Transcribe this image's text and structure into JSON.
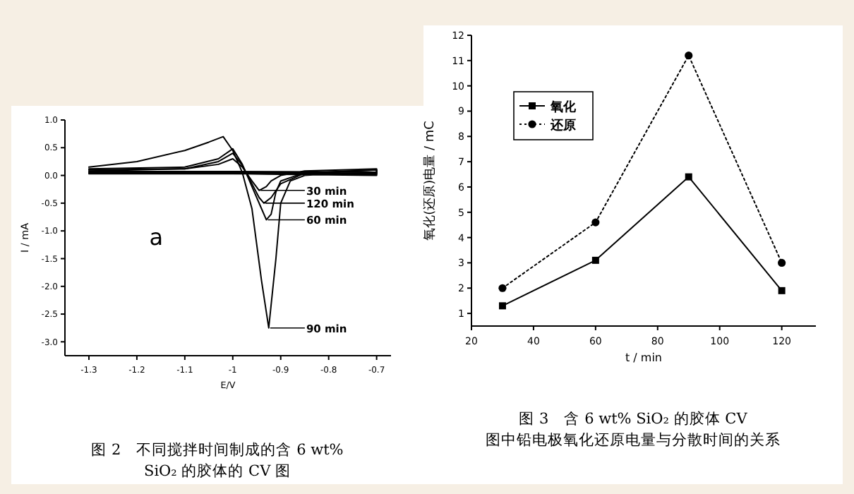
{
  "chart_data": [
    {
      "type": "line",
      "title": "图 2　不同搅拌时间制成的含 6 wt% SiO₂ 的胶体的 CV 图",
      "xlabel": "E/V",
      "ylabel": "I / mA",
      "xlim": [
        -1.35,
        -0.67
      ],
      "ylim": [
        -3.25,
        1.0
      ],
      "xticks": [
        -1.3,
        -1.2,
        -1.1,
        -1.0,
        -0.9,
        -0.8,
        -0.7
      ],
      "yticks": [
        {
          "value": 1,
          "label": "1.0"
        },
        0.5,
        {
          "value": 0,
          "label": "0.0"
        },
        -0.5,
        {
          "value": -1,
          "label": "-1.0"
        },
        -1.5,
        {
          "value": -2,
          "label": "-2.0"
        },
        -2.5,
        {
          "value": -3,
          "label": "-3.0"
        }
      ],
      "annotations": [
        "a"
      ],
      "legend": "right",
      "series": [
        {
          "name": "30 min",
          "color": "#000000",
          "x": [
            -1.3,
            -1.1,
            -1.03,
            -1.0,
            -0.98,
            -0.96,
            -0.945,
            -0.93,
            -0.92,
            -0.9,
            -0.85,
            -0.7,
            -0.7,
            -1.0,
            -1.3
          ],
          "values": [
            0.1,
            0.12,
            0.2,
            0.3,
            0.15,
            -0.1,
            -0.27,
            -0.2,
            -0.1,
            0.0,
            0.08,
            0.12,
            0.06,
            0.07,
            0.07
          ]
        },
        {
          "name": "120 min",
          "color": "#000000",
          "x": [
            -1.3,
            -1.1,
            -1.03,
            -1.0,
            -0.98,
            -0.96,
            -0.945,
            -0.935,
            -0.92,
            -0.9,
            -0.85,
            -0.7,
            -0.7,
            -1.0,
            -1.3
          ],
          "values": [
            0.08,
            0.12,
            0.25,
            0.4,
            0.18,
            -0.15,
            -0.4,
            -0.5,
            -0.4,
            -0.15,
            0.04,
            0.1,
            0.04,
            0.05,
            0.05
          ]
        },
        {
          "name": "60 min",
          "color": "#000000",
          "x": [
            -1.3,
            -1.1,
            -1.03,
            -1.0,
            -0.98,
            -0.96,
            -0.94,
            -0.93,
            -0.92,
            -0.91,
            -0.9,
            -0.85,
            -0.7,
            -0.7,
            -1.0,
            -1.3
          ],
          "values": [
            0.12,
            0.15,
            0.3,
            0.48,
            0.2,
            -0.2,
            -0.6,
            -0.8,
            -0.7,
            -0.3,
            -0.1,
            0.05,
            0.1,
            0.02,
            0.03,
            0.03
          ]
        },
        {
          "name": "90 min",
          "color": "#000000",
          "x": [
            -1.3,
            -1.2,
            -1.1,
            -1.05,
            -1.02,
            -1.0,
            -0.98,
            -0.96,
            -0.94,
            -0.925,
            -0.91,
            -0.9,
            -0.88,
            -0.85,
            -0.8,
            -0.7,
            -0.7,
            -0.9,
            -1.0,
            -1.3
          ],
          "values": [
            0.15,
            0.25,
            0.45,
            0.6,
            0.7,
            0.45,
            0.05,
            -0.6,
            -1.9,
            -2.75,
            -1.5,
            -0.5,
            -0.1,
            0.0,
            0.03,
            0.05,
            0.0,
            0.02,
            0.04,
            0.05
          ]
        }
      ]
    },
    {
      "type": "line",
      "title": "图 3　含 6 wt% SiO₂ 的胶体 CV 图中铅电极氧化还原电量与分散时间的关系",
      "xlabel": "t / min",
      "ylabel": "氧化(还原)电量 / mC",
      "xlim": [
        20,
        131
      ],
      "ylim": [
        0.5,
        12
      ],
      "xticks": [
        20,
        40,
        60,
        80,
        100,
        120
      ],
      "yticks": [
        1,
        2,
        3,
        4,
        5,
        6,
        7,
        8,
        9,
        10,
        11,
        12
      ],
      "legend": "top left",
      "x": [
        30,
        60,
        90,
        120
      ],
      "series": [
        {
          "name": "氧化",
          "color": "#000000",
          "marker": "square",
          "line_style": "solid",
          "values": [
            1.3,
            3.1,
            6.4,
            1.9
          ]
        },
        {
          "name": "还原",
          "color": "#000000",
          "marker": "circle",
          "line_style": "dotted",
          "values": [
            2.0,
            4.6,
            11.2,
            3.0
          ]
        }
      ]
    }
  ]
}
